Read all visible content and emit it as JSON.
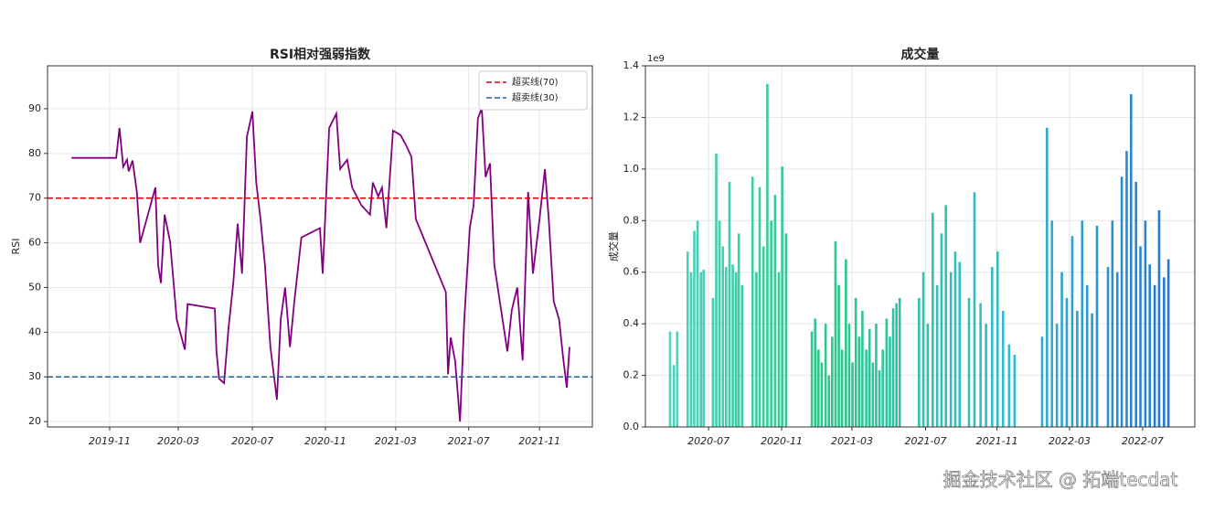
{
  "chart_data": [
    {
      "type": "line",
      "title": "RSI相对强弱指数",
      "ylabel": "RSI",
      "x": [
        4.4,
        12.6,
        13.2,
        13.9,
        14.6,
        14.9,
        15.6,
        16.4,
        17,
        19.8,
        20.3,
        20.8,
        21.5,
        22.5,
        23.7,
        25.2,
        25.7,
        30.7,
        31,
        31.5,
        32.4,
        33.2,
        34.1,
        34.9,
        35.7,
        36.6,
        37.6,
        38.3,
        39.1,
        39.9,
        40.9,
        42.1,
        42.8,
        43.6,
        44.5,
        45.3,
        46.6,
        50,
        50.5,
        51.7,
        53,
        53.7,
        55,
        55.9,
        57.6,
        59.2,
        59.7,
        60.7,
        61.4,
        62.2,
        63.4,
        64.8,
        65.9,
        66.8,
        67.6,
        73.1,
        73.5,
        74,
        74.8,
        75.7,
        76.5,
        77.5,
        78.2,
        79,
        79.7,
        80.4,
        81.2,
        82,
        84.4,
        85.2,
        86.2,
        87.2,
        88.2,
        89.1,
        90.3,
        91.3,
        92,
        92.9,
        93.9,
        94.6,
        95.3,
        95.8
      ],
      "series": [
        {
          "color": "#800080",
          "values": [
            79,
            79,
            85.7,
            77,
            78.6,
            76,
            78.4,
            71.4,
            60,
            72.4,
            55,
            51,
            66.3,
            60.2,
            42.9,
            36.1,
            46.3,
            45.3,
            35.7,
            29.6,
            28.6,
            40.8,
            51,
            64.3,
            53.1,
            83.7,
            89.4,
            73.5,
            65.3,
            55.1,
            36.7,
            24.9,
            42.9,
            50,
            36.7,
            46.9,
            61.2,
            63.3,
            53.1,
            85.7,
            88.9,
            76.5,
            78.6,
            72.4,
            68.4,
            66.3,
            73.5,
            70.4,
            72.4,
            63.3,
            85.1,
            84.1,
            81.6,
            79.2,
            65.3,
            49,
            30.6,
            38.8,
            33.7,
            20,
            42.9,
            63.3,
            68.4,
            87.8,
            90.2,
            74.7,
            77.8,
            55.1,
            35.7,
            44.9,
            50,
            33.7,
            71.4,
            53.1,
            65.3,
            76.5,
            65.3,
            46.9,
            42.9,
            34.7,
            27.6,
            36.7
          ]
        }
      ],
      "hlines": [
        {
          "name": "超买线(70)",
          "value": 70,
          "color": "#e00000"
        },
        {
          "name": "超卖线(30)",
          "value": 30,
          "color": "#1f5f9c"
        }
      ],
      "xlim": [
        0,
        100
      ],
      "ylim": [
        18.8,
        99.6
      ],
      "yticks": [
        20,
        30,
        40,
        50,
        60,
        70,
        80,
        90
      ],
      "xticks": [
        {
          "value": 11.4,
          "label": "2019-11"
        },
        {
          "value": 24,
          "label": "2020-03"
        },
        {
          "value": 37.6,
          "label": "2020-07"
        },
        {
          "value": 51,
          "label": "2020-11"
        },
        {
          "value": 63.9,
          "label": "2021-03"
        },
        {
          "value": 77.3,
          "label": "2021-07"
        },
        {
          "value": 90.3,
          "label": "2021-11"
        }
      ],
      "grid": true,
      "legend": "upper right"
    },
    {
      "type": "bar",
      "title": "成交量",
      "ylabel": "成交量",
      "offset_label": "1e9",
      "x": [
        4.5,
        5.2,
        5.8,
        7.7,
        8.3,
        8.9,
        9.5,
        10.1,
        10.6,
        12.3,
        12.9,
        13.5,
        14.1,
        14.7,
        15.3,
        15.9,
        16.5,
        17.0,
        17.6,
        19.5,
        20.2,
        20.8,
        21.5,
        22.2,
        22.9,
        23.6,
        24.3,
        24.9,
        25.6,
        30.3,
        30.9,
        31.5,
        32.1,
        32.8,
        33.4,
        34.0,
        34.6,
        35.2,
        35.8,
        36.5,
        37.1,
        37.7,
        38.3,
        38.9,
        39.5,
        40.2,
        40.8,
        41.4,
        42.0,
        42.6,
        43.2,
        43.9,
        44.5,
        45.1,
        45.7,
        46.3,
        49.8,
        50.6,
        51.4,
        52.3,
        53.1,
        53.9,
        54.7,
        55.6,
        56.4,
        57.2,
        58.9,
        59.9,
        61.0,
        62.0,
        63.1,
        64.1,
        65.1,
        66.2,
        67.2,
        72.2,
        73.1,
        74.0,
        74.9,
        75.8,
        76.7,
        77.7,
        78.6,
        79.5,
        80.4,
        81.3,
        82.2,
        84.2,
        85.0,
        85.9,
        86.7,
        87.6,
        88.4,
        89.3,
        90.1,
        91.0,
        91.8,
        92.7,
        93.5,
        94.4,
        95.2
      ],
      "values": [
        0.37,
        0.24,
        0.37,
        0.68,
        0.6,
        0.76,
        0.8,
        0.6,
        0.61,
        0.5,
        1.06,
        0.8,
        0.7,
        0.62,
        0.95,
        0.63,
        0.6,
        0.75,
        0.55,
        0.97,
        0.6,
        0.93,
        0.7,
        1.33,
        0.8,
        0.9,
        0.6,
        1.01,
        0.75,
        0.37,
        0.42,
        0.3,
        0.25,
        0.4,
        0.2,
        0.35,
        0.72,
        0.55,
        0.3,
        0.65,
        0.4,
        0.25,
        0.5,
        0.35,
        0.45,
        0.3,
        0.38,
        0.25,
        0.4,
        0.22,
        0.3,
        0.42,
        0.35,
        0.46,
        0.48,
        0.5,
        0.5,
        0.6,
        0.4,
        0.83,
        0.55,
        0.75,
        0.86,
        0.6,
        0.68,
        0.64,
        0.5,
        0.91,
        0.48,
        0.4,
        0.62,
        0.68,
        0.45,
        0.32,
        0.28,
        0.35,
        1.16,
        0.8,
        0.4,
        0.6,
        0.5,
        0.74,
        0.45,
        0.8,
        0.55,
        0.44,
        0.78,
        0.62,
        0.8,
        0.6,
        0.97,
        1.07,
        1.29,
        0.95,
        0.7,
        0.8,
        0.63,
        0.55,
        0.84,
        0.58,
        0.65
      ],
      "colors": [
        "#3fcfc0",
        "#18bf7c",
        "#1ab4c8",
        "#0a5cd0"
      ],
      "xlim": [
        0,
        100
      ],
      "ylim": [
        0,
        1.4
      ],
      "yticks": [
        {
          "value": 0,
          "label": "0.0"
        },
        {
          "value": 0.2,
          "label": "0.2"
        },
        {
          "value": 0.4,
          "label": "0.4"
        },
        {
          "value": 0.6,
          "label": "0.6"
        },
        {
          "value": 0.8,
          "label": "0.8"
        },
        {
          "value": 1,
          "label": "1.0"
        },
        {
          "value": 1.2,
          "label": "1.2"
        },
        {
          "value": 1.4,
          "label": "1.4"
        }
      ],
      "xticks": [
        {
          "value": 11.5,
          "label": "2020-07"
        },
        {
          "value": 24.8,
          "label": "2020-11"
        },
        {
          "value": 37.6,
          "label": "2021-03"
        },
        {
          "value": 51,
          "label": "2021-07"
        },
        {
          "value": 64,
          "label": "2021-11"
        },
        {
          "value": 77.2,
          "label": "2022-03"
        },
        {
          "value": 90.5,
          "label": "2022-07"
        }
      ],
      "grid": true
    }
  ],
  "watermark": "掘金技术社区 @ 拓端tecdat"
}
